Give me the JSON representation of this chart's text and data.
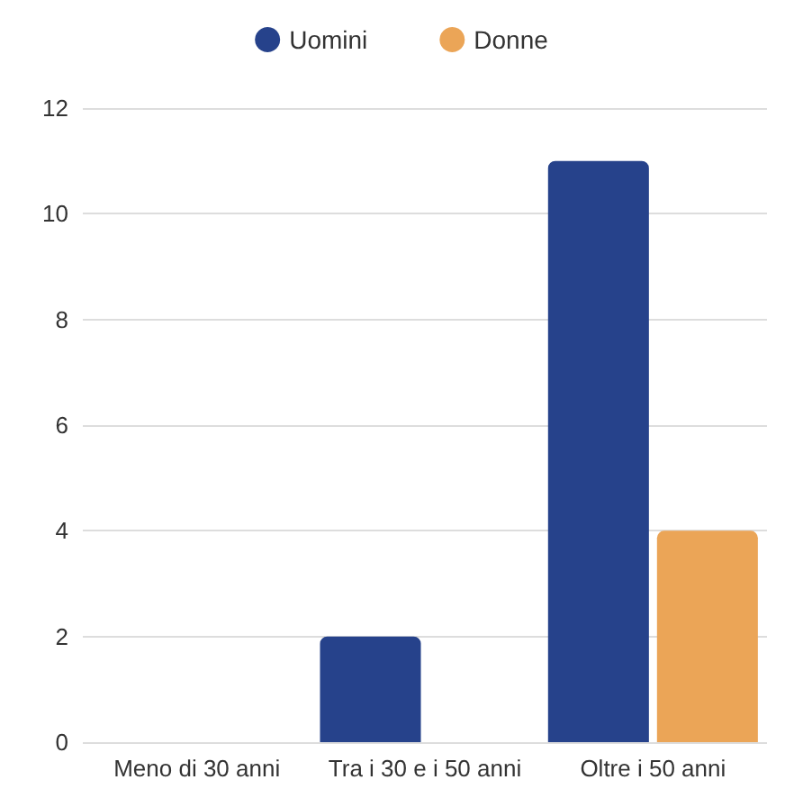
{
  "chart_data": {
    "type": "bar",
    "categories": [
      "Meno di 30 anni",
      "Tra i 30 e i 50 anni",
      "Oltre i 50 anni"
    ],
    "series": [
      {
        "name": "Uomini",
        "color": "#26428b",
        "values": [
          0,
          2,
          11
        ]
      },
      {
        "name": "Donne",
        "color": "#eba557",
        "values": [
          0,
          0,
          4
        ]
      }
    ],
    "ylim": [
      0,
      12
    ],
    "yticks": [
      0,
      2,
      4,
      6,
      8,
      10,
      12
    ],
    "grid": "y",
    "legend": "top"
  }
}
